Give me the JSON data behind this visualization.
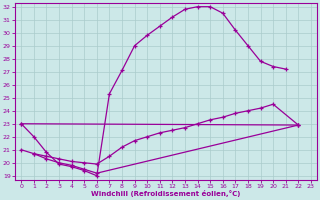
{
  "xlabel": "Windchill (Refroidissement éolien,°C)",
  "background_color": "#cce8e8",
  "line_color": "#990099",
  "grid_color": "#aacccc",
  "xlim": [
    -0.5,
    23.5
  ],
  "ylim": [
    18.7,
    32.3
  ],
  "yticks": [
    19,
    20,
    21,
    22,
    23,
    24,
    25,
    26,
    27,
    28,
    29,
    30,
    31,
    32
  ],
  "xticks": [
    0,
    1,
    2,
    3,
    4,
    5,
    6,
    7,
    8,
    9,
    10,
    11,
    12,
    13,
    14,
    15,
    16,
    17,
    18,
    19,
    20,
    21,
    22,
    23
  ],
  "series1_x": [
    0,
    1,
    2,
    3,
    4,
    5,
    6,
    7,
    8,
    9,
    10,
    11,
    12,
    13,
    14,
    15,
    16,
    17,
    18,
    19,
    20,
    21
  ],
  "series1_y": [
    23.0,
    22.0,
    20.8,
    19.9,
    19.7,
    19.4,
    19.0,
    25.3,
    27.1,
    29.0,
    29.8,
    30.5,
    31.2,
    31.8,
    32.0,
    32.0,
    31.5,
    30.2,
    29.0,
    27.8,
    27.4,
    27.2
  ],
  "series2_x": [
    0,
    22
  ],
  "series2_y": [
    23.0,
    22.9
  ],
  "series3_x": [
    0,
    1,
    2,
    3,
    4,
    5,
    6,
    7,
    8,
    9,
    10,
    11,
    12,
    13,
    14,
    15,
    16,
    17,
    18,
    19,
    20,
    22
  ],
  "series3_y": [
    21.0,
    20.7,
    20.5,
    20.3,
    20.1,
    20.0,
    19.9,
    20.5,
    21.2,
    21.7,
    22.0,
    22.3,
    22.5,
    22.7,
    23.0,
    23.3,
    23.5,
    23.8,
    24.0,
    24.2,
    24.5,
    22.9
  ],
  "series4_x": [
    1,
    2,
    3,
    4,
    5,
    6,
    22
  ],
  "series4_y": [
    20.7,
    20.3,
    20.0,
    19.8,
    19.5,
    19.2,
    22.9
  ]
}
